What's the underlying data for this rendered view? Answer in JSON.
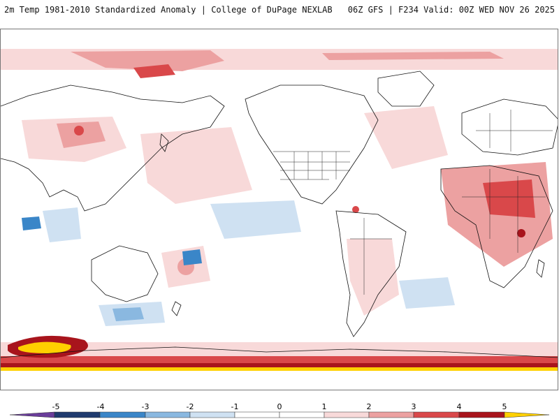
{
  "header": {
    "title_left": "2m Temp 1981-2010 Standardized Anomaly | College of DuPage NEXLAB",
    "title_right": "06Z GFS | F234 Valid: 00Z WED NOV 26 2025"
  },
  "colors": {
    "neg5": "#6a3d9a",
    "neg4": "#1f3a6e",
    "neg3": "#3a86c8",
    "neg2": "#8ab8e0",
    "neg1": "#cfe1f2",
    "neutral": "#ffffff",
    "pos1": "#f8d9d9",
    "pos2": "#eca1a1",
    "pos3": "#d9484a",
    "pos4": "#a8141c",
    "pos5": "#ffd000",
    "coast": "#111111"
  },
  "colorbar": {
    "ticks": [
      "-5",
      "-4",
      "-3",
      "-2",
      "-1",
      "0",
      "1",
      "2",
      "3",
      "4",
      "5"
    ],
    "segments": [
      "#6a3d9a",
      "#1f3a6e",
      "#3a86c8",
      "#8ab8e0",
      "#cfe1f2",
      "#ffffff",
      "#ffffff",
      "#f8d9d9",
      "#eca1a1",
      "#d9484a",
      "#a8141c",
      "#ffd000"
    ]
  }
}
